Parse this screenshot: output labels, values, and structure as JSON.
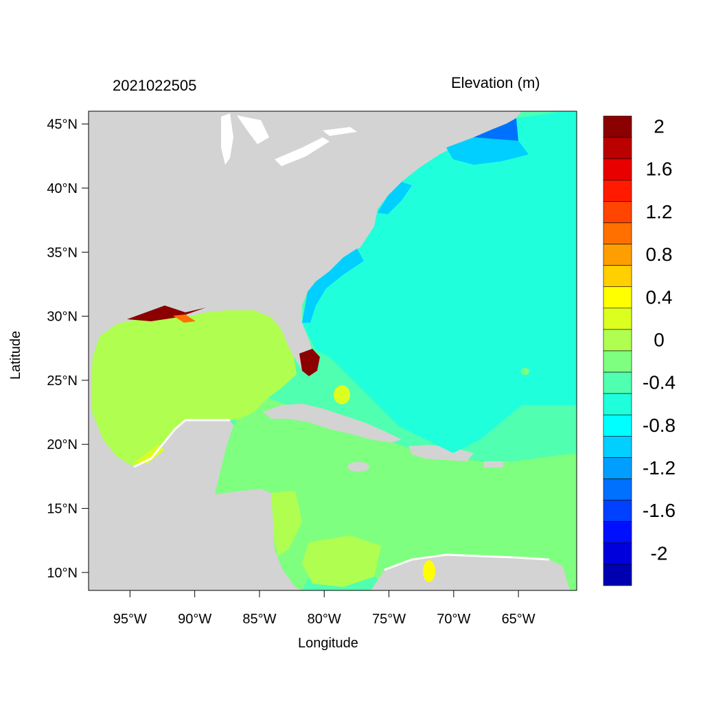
{
  "map": {
    "title_left": "2021022505",
    "title_right": "Elevation (m)",
    "xlabel": "Longitude",
    "ylabel": "Latitude",
    "lon_range": [
      -98.2,
      -60.5
    ],
    "lat_range": [
      8.6,
      46.0
    ],
    "lon_ticks": [
      {
        "value": -95,
        "label": "95°W"
      },
      {
        "value": -90,
        "label": "90°W"
      },
      {
        "value": -85,
        "label": "85°W"
      },
      {
        "value": -80,
        "label": "80°W"
      },
      {
        "value": -75,
        "label": "75°W"
      },
      {
        "value": -70,
        "label": "70°W"
      },
      {
        "value": -65,
        "label": "65°W"
      }
    ],
    "lat_ticks": [
      {
        "value": 45,
        "label": "45°N"
      },
      {
        "value": 40,
        "label": "40°N"
      },
      {
        "value": 35,
        "label": "35°N"
      },
      {
        "value": 30,
        "label": "30°N"
      },
      {
        "value": 25,
        "label": "25°N"
      },
      {
        "value": 20,
        "label": "20°N"
      },
      {
        "value": 15,
        "label": "15°N"
      },
      {
        "value": 10,
        "label": "10°N"
      }
    ],
    "land_color": "#d3d3d3",
    "colorbar": {
      "colors_top_to_bottom": [
        "#8b0000",
        "#bb0000",
        "#e80000",
        "#ff1a00",
        "#ff4500",
        "#ff7000",
        "#ff9e00",
        "#ffcf00",
        "#ffff00",
        "#dcff20",
        "#b0ff50",
        "#7fff80",
        "#50ffaf",
        "#20ffdc",
        "#00ffff",
        "#00cfff",
        "#009eff",
        "#0070ff",
        "#0040ff",
        "#0010ff",
        "#0000dc",
        "#0000b0"
      ],
      "labels": [
        {
          "value": 2,
          "label": "2"
        },
        {
          "value": 1.6,
          "label": "1.6"
        },
        {
          "value": 1.2,
          "label": "1.2"
        },
        {
          "value": 0.8,
          "label": "0.8"
        },
        {
          "value": 0.4,
          "label": "0.4"
        },
        {
          "value": 0,
          "label": "0"
        },
        {
          "value": -0.4,
          "label": "-0.4"
        },
        {
          "value": -0.8,
          "label": "-0.8"
        },
        {
          "value": -1.2,
          "label": "-1.2"
        },
        {
          "value": -1.6,
          "label": "-1.6"
        },
        {
          "value": -2,
          "label": "-2"
        }
      ]
    }
  }
}
